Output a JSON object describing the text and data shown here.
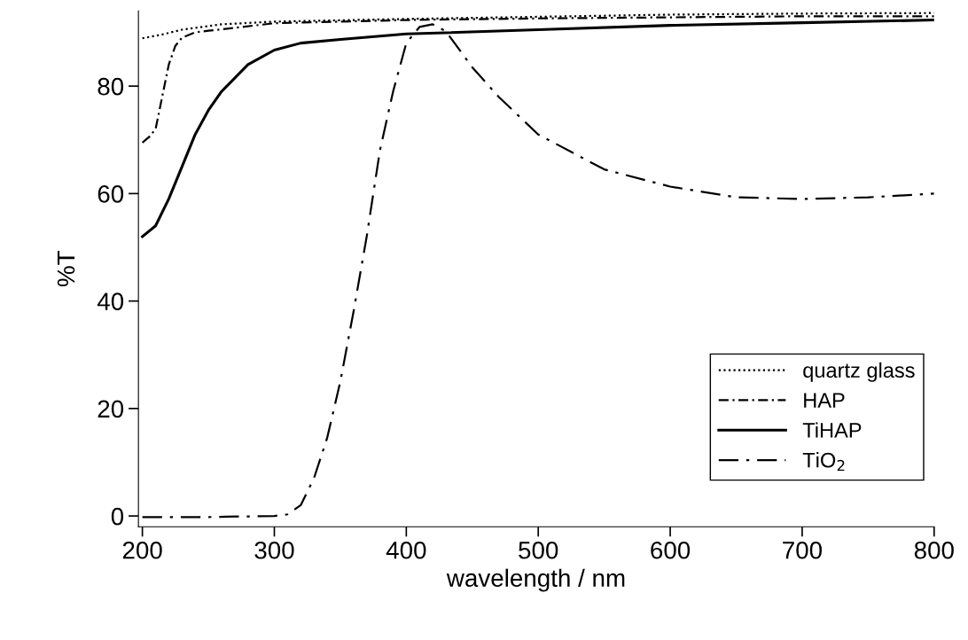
{
  "chart_data": {
    "type": "line",
    "xlabel": "wavelength / nm",
    "ylabel": "%T",
    "xlim": [
      197,
      800
    ],
    "ylim": [
      -2,
      94
    ],
    "xticks": [
      200,
      300,
      400,
      500,
      600,
      700,
      800
    ],
    "yticks": [
      0,
      20,
      40,
      60,
      80
    ],
    "grid": false,
    "legend": "bottom right",
    "marker": "none",
    "series": [
      {
        "name": "quartz glass",
        "color": "#000000",
        "line_style": "dotted",
        "x": [
          200,
          215,
          230,
          260,
          300,
          400,
          500,
          600,
          700,
          800
        ],
        "values": [
          88.9,
          89.6,
          90.5,
          91.5,
          92,
          92.5,
          92.9,
          93.3,
          93.5,
          93.6
        ]
      },
      {
        "name": "HAP",
        "color": "#000000",
        "line_style": "dashdot",
        "x": [
          200,
          205,
          210,
          215,
          220,
          225,
          230,
          240,
          250,
          300,
          400,
          500,
          600,
          700,
          800
        ],
        "values": [
          69.5,
          70.5,
          72,
          78,
          84,
          87.5,
          89,
          90,
          90.3,
          91.7,
          92.3,
          92.6,
          92.8,
          93,
          93
        ]
      },
      {
        "name": "TiHAP",
        "color": "#000000",
        "line_style": "solid",
        "x": [
          200,
          210,
          220,
          230,
          240,
          250,
          260,
          280,
          300,
          320,
          350,
          400,
          500,
          600,
          700,
          800
        ],
        "values": [
          52,
          54,
          59,
          65,
          71,
          75.5,
          79,
          84,
          86.7,
          88,
          88.7,
          89.7,
          90.5,
          91.3,
          91.8,
          92.3
        ]
      },
      {
        "name": "TiO$_{2}$",
        "color": "#000000",
        "line_style": "longdashdot",
        "x": [
          200,
          250,
          300,
          310,
          320,
          330,
          340,
          350,
          360,
          370,
          380,
          390,
          400,
          410,
          420,
          430,
          450,
          470,
          500,
          550,
          600,
          650,
          700,
          750,
          800
        ],
        "values": [
          -0.2,
          -0.2,
          0,
          0.3,
          2,
          7,
          14.5,
          25,
          38,
          52,
          68,
          79,
          88,
          91,
          91.5,
          90.2,
          83.5,
          78,
          71,
          64.5,
          61.3,
          59.3,
          59,
          59.3,
          60
        ]
      }
    ]
  }
}
